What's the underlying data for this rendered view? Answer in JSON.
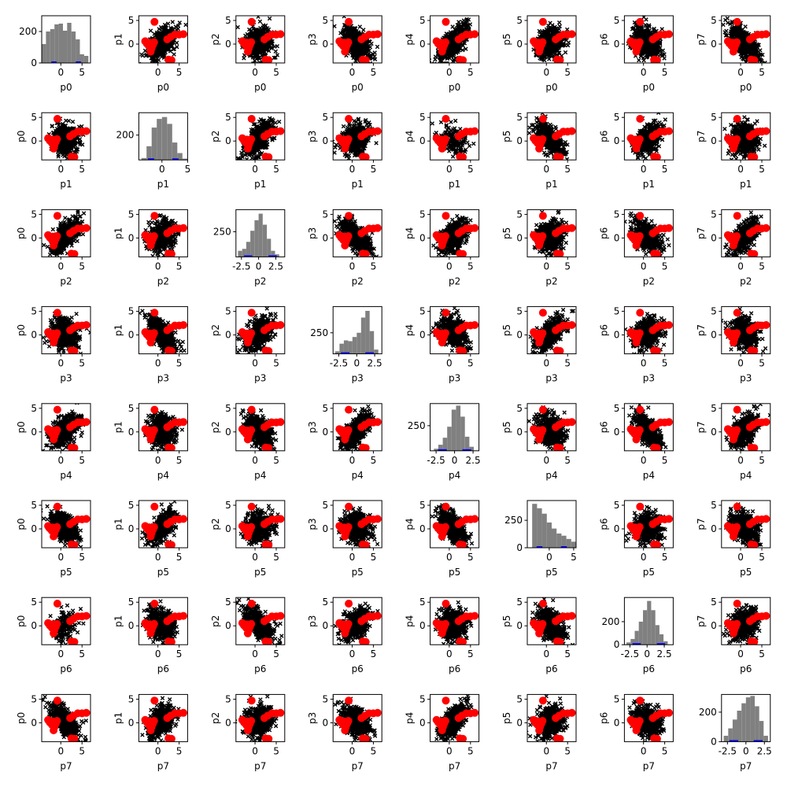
{
  "chart_data": {
    "type": "pair-plot",
    "variables": [
      "p0",
      "p1",
      "p2",
      "p3",
      "p4",
      "p5",
      "p6",
      "p7"
    ],
    "colors": {
      "samples": "#000000",
      "highlight_points": "#ff0000",
      "histogram_bars": "#808080",
      "histogram_highlight": "#0000ff"
    },
    "scatter_axes": {
      "xlim": [
        -4.5,
        7
      ],
      "ylim": [
        -4,
        6
      ],
      "xticks": [
        0,
        5
      ],
      "yticks": [
        0,
        5
      ]
    },
    "highlight_points": [
      {
        "x": -0.8,
        "y": 4.7
      },
      {
        "x": -3.0,
        "y": 0.6
      },
      {
        "x": -2.6,
        "y": 0.1
      },
      {
        "x": -2.1,
        "y": -0.4
      },
      {
        "x": -1.9,
        "y": 0.3
      },
      {
        "x": -1.5,
        "y": -0.9
      },
      {
        "x": -1.2,
        "y": -0.2
      },
      {
        "x": -0.9,
        "y": 0.4
      },
      {
        "x": -1.7,
        "y": -1.6
      },
      {
        "x": 2.2,
        "y": 1.0
      },
      {
        "x": 3.0,
        "y": 1.5
      },
      {
        "x": 4.0,
        "y": 2.0
      },
      {
        "x": 5.0,
        "y": 2.0
      },
      {
        "x": 6.0,
        "y": 2.1
      },
      {
        "x": 2.5,
        "y": -3.3
      },
      {
        "x": 3.2,
        "y": -3.4
      }
    ],
    "diagonal_histograms": [
      {
        "variable": "p0",
        "xlim": [
          -4.5,
          7
        ],
        "ylim": [
          0,
          300
        ],
        "xticks": [
          0,
          5
        ],
        "yticks": [
          0,
          200
        ],
        "bins": [
          -4.5,
          -3.5,
          -2.5,
          -1.5,
          -0.5,
          0.5,
          1.5,
          2.5,
          3.5,
          4.5,
          5.5,
          6.5
        ],
        "counts": [
          120,
          200,
          215,
          245,
          250,
          205,
          255,
          200,
          150,
          55,
          45
        ]
      },
      {
        "variable": "p1",
        "xlim": [
          -4.5,
          5
        ],
        "ylim": [
          0,
          380
        ],
        "xticks": [
          0,
          5
        ],
        "yticks": [
          200
        ],
        "bins": [
          -4,
          -3,
          -2,
          -1,
          0,
          1,
          2,
          3,
          4,
          5
        ],
        "counts": [
          15,
          110,
          260,
          330,
          345,
          290,
          140,
          55,
          10
        ]
      },
      {
        "variable": "p2",
        "xlim": [
          -3.3,
          3.8
        ],
        "ylim": [
          0,
          470
        ],
        "xticks": [
          -2.5,
          0.0,
          2.5
        ],
        "yticks": [
          250
        ],
        "bins": [
          -3,
          -2.4,
          -1.8,
          -1.2,
          -0.6,
          0,
          0.6,
          1.2,
          1.8,
          2.4,
          3
        ],
        "counts": [
          60,
          80,
          150,
          260,
          365,
          430,
          320,
          180,
          60,
          25
        ]
      },
      {
        "variable": "p3",
        "xlim": [
          -3.3,
          3.5
        ],
        "ylim": [
          0,
          560
        ],
        "xticks": [
          -2.5,
          0.0,
          2.5
        ],
        "yticks": [
          250
        ],
        "bins": [
          -3,
          -2.4,
          -1.8,
          -1.2,
          -0.6,
          0,
          0.6,
          1.2,
          1.8,
          2.4,
          3
        ],
        "counts": [
          30,
          120,
          160,
          150,
          200,
          250,
          430,
          510,
          270,
          50
        ]
      },
      {
        "variable": "p4",
        "xlim": [
          -3.3,
          3.3
        ],
        "ylim": [
          0,
          470
        ],
        "xticks": [
          -2.5,
          0.0,
          2.5
        ],
        "yticks": [
          250
        ],
        "bins": [
          -2.8,
          -2.2,
          -1.6,
          -1.0,
          -0.4,
          0.2,
          0.8,
          1.4,
          2.0,
          2.6
        ],
        "counts": [
          20,
          60,
          130,
          240,
          410,
          450,
          340,
          140,
          40
        ]
      },
      {
        "variable": "p5",
        "xlim": [
          -4.5,
          5.5
        ],
        "ylim": [
          0,
          430
        ],
        "xticks": [
          0,
          5
        ],
        "yticks": [
          0,
          250
        ],
        "bins": [
          -3.5,
          -2.5,
          -1.5,
          -0.5,
          0.5,
          1.5,
          2.5,
          3.5,
          4.5,
          5.5
        ],
        "counts": [
          400,
          360,
          310,
          230,
          175,
          130,
          110,
          80,
          55
        ]
      },
      {
        "variable": "p6",
        "xlim": [
          -3.3,
          3.8
        ],
        "ylim": [
          0,
          410
        ],
        "xticks": [
          -2.5,
          0.0,
          2.5
        ],
        "yticks": [
          0,
          200
        ],
        "bins": [
          -3,
          -2.4,
          -1.8,
          -1.2,
          -0.6,
          0,
          0.6,
          1.2,
          1.8,
          2.4,
          3
        ],
        "counts": [
          20,
          50,
          120,
          200,
          300,
          380,
          300,
          170,
          90,
          30
        ]
      },
      {
        "variable": "p7",
        "xlim": [
          -3.3,
          3.3
        ],
        "ylim": [
          0,
          320
        ],
        "xticks": [
          -2.5,
          0.0,
          2.5
        ],
        "yticks": [
          0,
          200
        ],
        "bins": [
          -3.0,
          -2.4,
          -1.8,
          -1.2,
          -0.6,
          0,
          0.6,
          1.2,
          1.8,
          2.4,
          3.0
        ],
        "counts": [
          40,
          90,
          150,
          210,
          260,
          300,
          310,
          240,
          140,
          40
        ]
      }
    ]
  }
}
